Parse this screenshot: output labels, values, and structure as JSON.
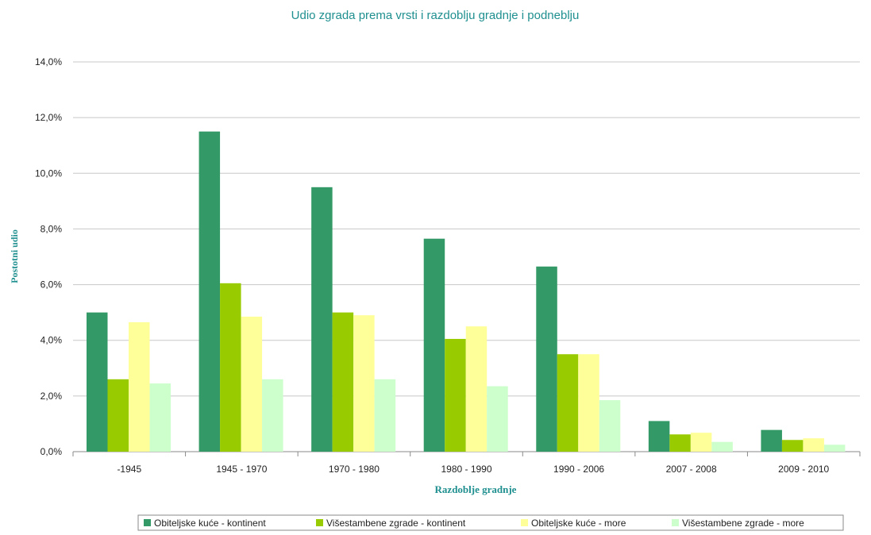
{
  "chart_data": {
    "type": "bar",
    "title": "Udio zgrada prema vrsti i razdoblju gradnje i podneblju",
    "xlabel": "Razdoblje gradnje",
    "ylabel": "Postotni udio",
    "categories": [
      "-1945",
      "1945 - 1970",
      "1970 - 1980",
      "1980 - 1990",
      "1990 - 2006",
      "2007 - 2008",
      "2009 - 2010"
    ],
    "ylim": [
      0,
      14
    ],
    "yticks": [
      0,
      2,
      4,
      6,
      8,
      10,
      12,
      14
    ],
    "ytick_labels": [
      "0,0%",
      "2,0%",
      "4,0%",
      "6,0%",
      "8,0%",
      "10,0%",
      "12,0%",
      "14,0%"
    ],
    "grid": "horizontal",
    "legend_position": "bottom",
    "series": [
      {
        "name": "Obiteljske kuće - kontinent",
        "color": "#339966",
        "values": [
          5.0,
          11.5,
          9.5,
          7.65,
          6.65,
          1.1,
          0.78
        ]
      },
      {
        "name": "Višestambene zgrade - kontinent",
        "color": "#99cc00",
        "values": [
          2.6,
          6.05,
          5.0,
          4.05,
          3.5,
          0.62,
          0.42
        ]
      },
      {
        "name": "Obiteljske kuće - more",
        "color": "#ffff99",
        "values": [
          4.65,
          4.85,
          4.9,
          4.5,
          3.5,
          0.68,
          0.48
        ]
      },
      {
        "name": "Višestambene zgrade - more",
        "color": "#ccffcc",
        "values": [
          2.45,
          2.6,
          2.6,
          2.35,
          1.85,
          0.35,
          0.25
        ]
      }
    ]
  }
}
